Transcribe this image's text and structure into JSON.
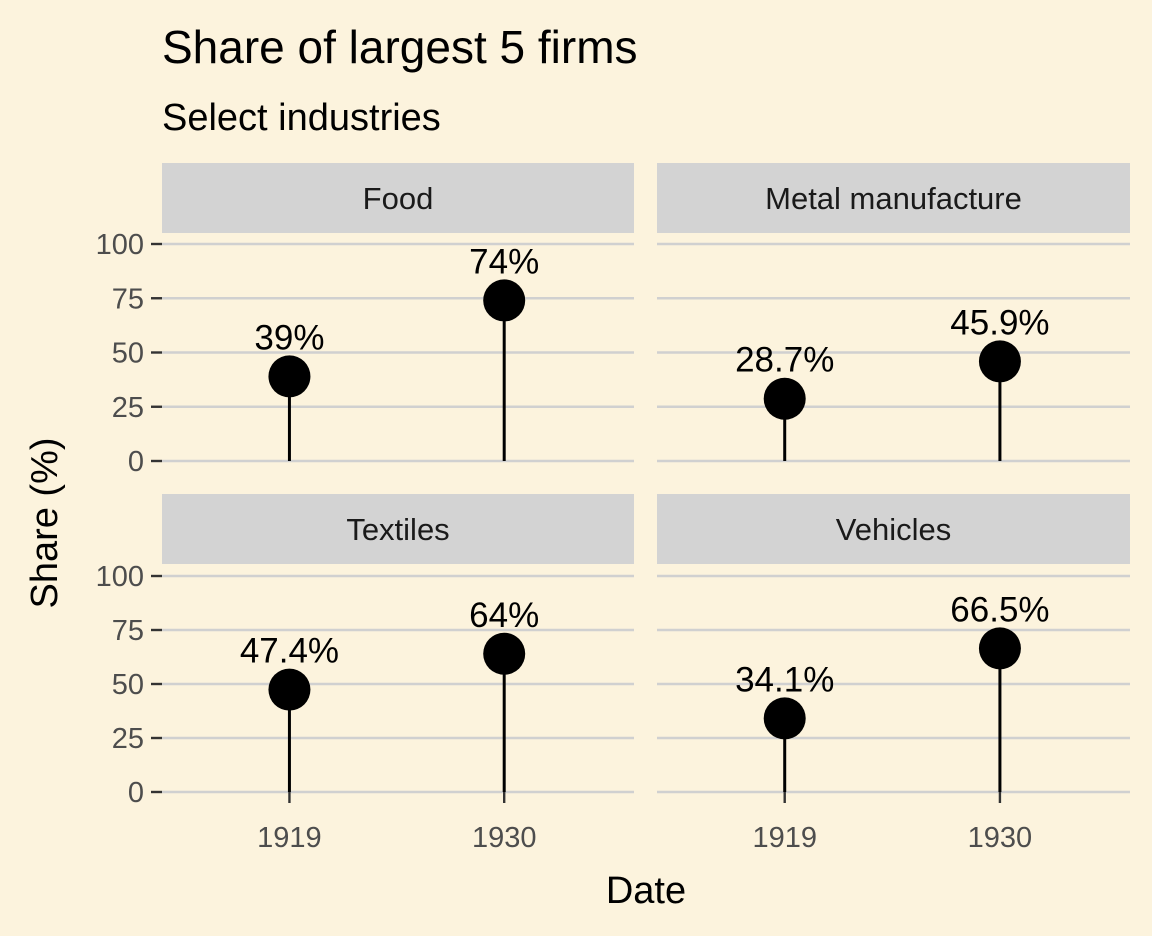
{
  "chart_data": {
    "type": "lollipop",
    "title": "Share of largest 5 firms",
    "subtitle": "Select industries",
    "xlabel": "Date",
    "ylabel": "Share (%)",
    "ylim": [
      0,
      100
    ],
    "yticks": [
      "0",
      "25",
      "50",
      "75",
      "100"
    ],
    "categories": [
      "1919",
      "1930"
    ],
    "grid": "horizontal",
    "facets": [
      {
        "name": "Food",
        "values": [
          39,
          74
        ],
        "labels": [
          "39%",
          "74%"
        ]
      },
      {
        "name": "Metal manufacture",
        "values": [
          28.7,
          45.9
        ],
        "labels": [
          "28.7%",
          "45.9%"
        ]
      },
      {
        "name": "Textiles",
        "values": [
          47.4,
          64
        ],
        "labels": [
          "47.4%",
          "64%"
        ]
      },
      {
        "name": "Vehicles",
        "values": [
          34.1,
          66.5
        ],
        "labels": [
          "34.1%",
          "66.5%"
        ]
      }
    ]
  }
}
